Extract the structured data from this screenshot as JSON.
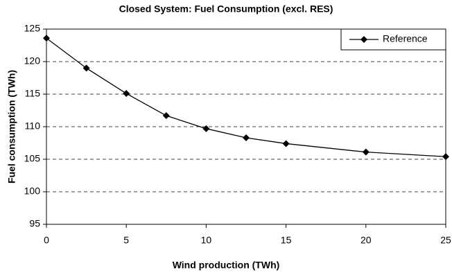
{
  "chart_data": {
    "type": "line",
    "title": "Closed System: Fuel Consumption (excl. RES)",
    "x_label": "Wind production (TWh)",
    "y_label": "Fuel consumption (TWh)",
    "x": [
      0,
      2.5,
      5,
      7.5,
      10,
      12.5,
      15,
      20,
      25
    ],
    "series": [
      {
        "name": "Reference",
        "color": "#000000",
        "values": [
          123.6,
          119,
          115.1,
          111.7,
          109.7,
          108.3,
          107.4,
          106.1,
          105.4
        ]
      }
    ],
    "xlim": [
      0,
      25
    ],
    "xticks": [
      0,
      5,
      10,
      15,
      20,
      25
    ],
    "ylim": [
      95,
      125
    ],
    "yticks": [
      95,
      100,
      105,
      110,
      115,
      120,
      125
    ],
    "grid": true,
    "legend": "upper right"
  }
}
